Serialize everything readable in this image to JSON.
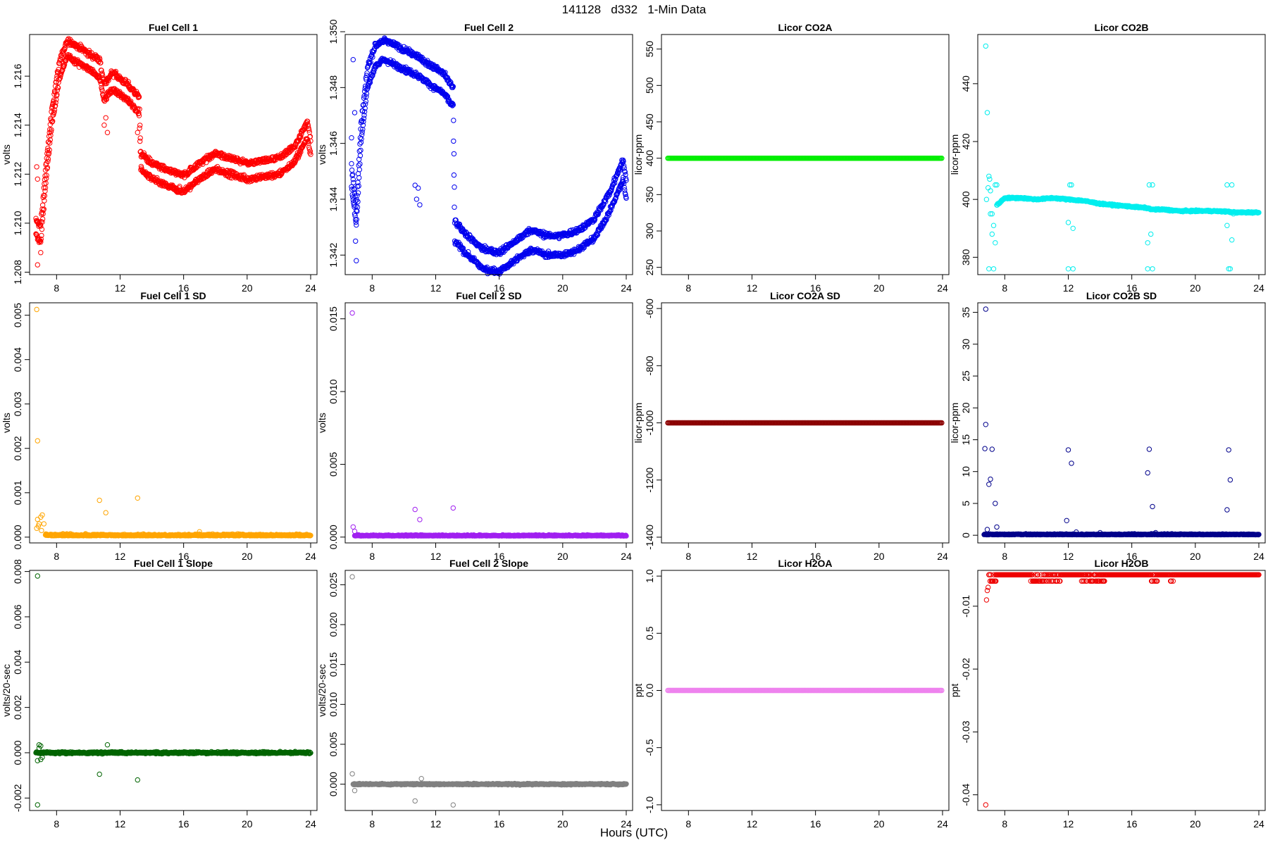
{
  "figure": {
    "title": "141128   d332   1-Min Data",
    "xlabel": "Hours (UTC)"
  },
  "chart_data": [
    {
      "type": "scatter",
      "title": "Fuel Cell 1",
      "ylabel": "volts",
      "color": "#ff0000",
      "xlim": [
        6.3,
        24.4
      ],
      "ylim": [
        1.2079,
        1.2177
      ],
      "xticks": [
        8,
        12,
        16,
        20,
        24
      ],
      "yticks": [
        1.208,
        1.21,
        1.212,
        1.214,
        1.216
      ],
      "ydecimals": 3,
      "shape": {
        "kind": "profile",
        "noise": 0.00012,
        "offsets": [
          0,
          0.00065
        ],
        "knots": [
          [
            6.7,
            1.2095
          ],
          [
            7.0,
            1.2092
          ],
          [
            7.3,
            1.2115
          ],
          [
            7.7,
            1.214
          ],
          [
            8.2,
            1.216
          ],
          [
            8.7,
            1.2168
          ],
          [
            9.5,
            1.2165
          ],
          [
            10.7,
            1.216
          ],
          [
            11.0,
            1.215
          ],
          [
            11.5,
            1.2155
          ],
          [
            12.5,
            1.215
          ],
          [
            13.2,
            1.2145
          ],
          [
            13.3,
            1.2122
          ],
          [
            14.0,
            1.2118
          ],
          [
            15.0,
            1.2115
          ],
          [
            16.0,
            1.2113
          ],
          [
            17.0,
            1.2118
          ],
          [
            18.0,
            1.2122
          ],
          [
            19.0,
            1.212
          ],
          [
            20.0,
            1.2118
          ],
          [
            21.0,
            1.2119
          ],
          [
            22.0,
            1.212
          ],
          [
            23.0,
            1.2125
          ],
          [
            23.8,
            1.2135
          ],
          [
            24.0,
            1.2128
          ]
        ],
        "extra": [
          [
            6.8,
            1.2083
          ],
          [
            7.0,
            1.2088
          ],
          [
            11.0,
            1.214
          ],
          [
            11.2,
            1.2137
          ],
          [
            11.1,
            1.2143
          ],
          [
            13.1,
            1.2137
          ],
          [
            6.75,
            1.2123
          ],
          [
            6.8,
            1.2118
          ]
        ]
      }
    },
    {
      "type": "scatter",
      "title": "Fuel Cell 2",
      "ylabel": "volts",
      "color": "#0000ee",
      "xlim": [
        6.3,
        24.4
      ],
      "ylim": [
        1.3413,
        1.3499
      ],
      "xticks": [
        8,
        12,
        16,
        20,
        24
      ],
      "yticks": [
        1.342,
        1.344,
        1.346,
        1.348,
        1.35
      ],
      "ydecimals": 3,
      "shape": {
        "kind": "profile",
        "noise": 0.0001,
        "offsets": [
          0,
          0.0007
        ],
        "knots": [
          [
            6.7,
            1.3445
          ],
          [
            7.0,
            1.343
          ],
          [
            7.3,
            1.346
          ],
          [
            7.7,
            1.348
          ],
          [
            8.2,
            1.3488
          ],
          [
            8.8,
            1.349
          ],
          [
            9.5,
            1.3488
          ],
          [
            10.6,
            1.3485
          ],
          [
            10.7,
            1.3485
          ],
          [
            11.4,
            1.3482
          ],
          [
            12.5,
            1.3478
          ],
          [
            13.1,
            1.3473
          ],
          [
            13.2,
            1.3425
          ],
          [
            14.0,
            1.342
          ],
          [
            15.0,
            1.3415
          ],
          [
            16.0,
            1.3414
          ],
          [
            17.0,
            1.3418
          ],
          [
            18.0,
            1.3422
          ],
          [
            19.0,
            1.342
          ],
          [
            20.0,
            1.342
          ],
          [
            21.0,
            1.3422
          ],
          [
            22.0,
            1.3426
          ],
          [
            23.0,
            1.3436
          ],
          [
            23.8,
            1.3447
          ],
          [
            24.0,
            1.344
          ]
        ],
        "extra": [
          [
            6.8,
            1.349
          ],
          [
            6.9,
            1.3471
          ],
          [
            7.0,
            1.3418
          ],
          [
            6.95,
            1.3425
          ],
          [
            10.7,
            1.3445
          ],
          [
            10.9,
            1.3444
          ],
          [
            11.0,
            1.3438
          ],
          [
            10.8,
            1.344
          ],
          [
            6.7,
            1.3462
          ]
        ]
      }
    },
    {
      "type": "scatter",
      "title": "Licor CO2A",
      "ylabel": "licor-ppm",
      "color": "#00ee00",
      "xlim": [
        6.3,
        24.4
      ],
      "ylim": [
        240,
        570
      ],
      "xticks": [
        8,
        12,
        16,
        20,
        24
      ],
      "yticks": [
        250,
        300,
        350,
        400,
        450,
        500,
        550
      ],
      "ydecimals": 0,
      "shape": {
        "kind": "flat",
        "value": 400
      }
    },
    {
      "type": "scatter",
      "title": "Licor CO2B",
      "ylabel": "licor-ppm",
      "color": "#00eeee",
      "xlim": [
        6.3,
        24.4
      ],
      "ylim": [
        374,
        457
      ],
      "xticks": [
        8,
        12,
        16,
        20,
        24
      ],
      "yticks": [
        380,
        400,
        420,
        440
      ],
      "ydecimals": 0,
      "shape": {
        "kind": "profile",
        "noise": 0.25,
        "offsets": [
          0
        ],
        "knots": [
          [
            7.5,
            398
          ],
          [
            8.0,
            400.5
          ],
          [
            9.0,
            400.5
          ],
          [
            10.0,
            400
          ],
          [
            11.0,
            400.5
          ],
          [
            12.0,
            400
          ],
          [
            13.0,
            399.5
          ],
          [
            14.0,
            398.5
          ],
          [
            15.0,
            398
          ],
          [
            16.0,
            397.5
          ],
          [
            17.0,
            397
          ],
          [
            17.3,
            396.5
          ],
          [
            18.0,
            396.5
          ],
          [
            19.0,
            396
          ],
          [
            20.0,
            396
          ],
          [
            21.0,
            396
          ],
          [
            22.0,
            395.8
          ],
          [
            22.5,
            395.5
          ],
          [
            23.0,
            395.5
          ],
          [
            24.0,
            395.5
          ]
        ],
        "extra": [
          [
            6.8,
            453
          ],
          [
            6.9,
            430
          ],
          [
            7.0,
            408
          ],
          [
            7.05,
            407
          ],
          [
            6.95,
            404
          ],
          [
            7.1,
            403
          ],
          [
            6.85,
            400
          ],
          [
            7.1,
            395
          ],
          [
            7.2,
            395
          ],
          [
            7.3,
            391
          ],
          [
            7.2,
            388
          ],
          [
            7.4,
            385
          ],
          [
            7.5,
            405
          ],
          [
            7.4,
            405
          ],
          [
            7.0,
            376
          ],
          [
            7.3,
            376
          ],
          [
            12.1,
            405
          ],
          [
            12.2,
            405
          ],
          [
            12.0,
            392
          ],
          [
            12.3,
            390
          ],
          [
            12.0,
            376
          ],
          [
            12.3,
            376
          ],
          [
            17.1,
            405
          ],
          [
            17.3,
            405
          ],
          [
            17.0,
            385
          ],
          [
            17.2,
            388
          ],
          [
            17.0,
            376
          ],
          [
            17.3,
            376
          ],
          [
            22.0,
            405
          ],
          [
            22.3,
            405
          ],
          [
            22.0,
            391
          ],
          [
            22.3,
            386
          ],
          [
            22.1,
            376
          ],
          [
            22.2,
            376
          ],
          [
            22.4,
            395
          ]
        ]
      }
    },
    {
      "type": "scatter",
      "title": "Fuel Cell 1 SD",
      "ylabel": "volts",
      "color": "#ffa500",
      "xlim": [
        6.3,
        24.4
      ],
      "ylim": [
        -0.00013,
        0.00528
      ],
      "xticks": [
        8,
        12,
        16,
        20,
        24
      ],
      "yticks": [
        0.0,
        0.001,
        0.002,
        0.003,
        0.004,
        0.005
      ],
      "ydecimals": 3,
      "shape": {
        "kind": "lowband",
        "base": 3e-05,
        "noise": 3.5e-05,
        "from": 7.3,
        "extra": [
          [
            6.75,
            0.00513
          ],
          [
            6.8,
            0.00217
          ],
          [
            10.7,
            0.00083
          ],
          [
            11.1,
            0.00055
          ],
          [
            13.1,
            0.00088
          ],
          [
            6.8,
            0.0004
          ],
          [
            6.9,
            0.0003
          ],
          [
            7.0,
            0.00045
          ],
          [
            7.1,
            0.0005
          ],
          [
            7.2,
            0.0003
          ],
          [
            6.75,
            0.0002
          ],
          [
            6.85,
            0.00025
          ],
          [
            7.05,
            0.00015
          ],
          [
            17.0,
            0.00012
          ]
        ]
      }
    },
    {
      "type": "scatter",
      "title": "Fuel Cell 2 SD",
      "ylabel": "volts",
      "color": "#a020f0",
      "xlim": [
        6.3,
        24.4
      ],
      "ylim": [
        -0.0004,
        0.0161
      ],
      "xticks": [
        8,
        12,
        16,
        20,
        24
      ],
      "yticks": [
        0.0,
        0.005,
        0.01,
        0.015
      ],
      "ydecimals": 3,
      "shape": {
        "kind": "lowband",
        "base": 8e-05,
        "noise": 6e-05,
        "from": 6.9,
        "extra": [
          [
            6.75,
            0.0154
          ],
          [
            6.8,
            0.0007
          ],
          [
            6.9,
            0.0004
          ],
          [
            10.7,
            0.0019
          ],
          [
            11.0,
            0.0012
          ],
          [
            13.1,
            0.002
          ]
        ]
      }
    },
    {
      "type": "scatter",
      "title": "Licor CO2A SD",
      "ylabel": "licor-ppm",
      "color": "#8b0000",
      "xlim": [
        6.3,
        24.4
      ],
      "ylim": [
        -1420,
        -580
      ],
      "xticks": [
        8,
        12,
        16,
        20,
        24
      ],
      "yticks": [
        -1400,
        -1200,
        -1000,
        -800,
        -600
      ],
      "ydecimals": 0,
      "shape": {
        "kind": "flat",
        "value": -1000
      }
    },
    {
      "type": "scatter",
      "title": "Licor CO2B SD",
      "ylabel": "licor-ppm",
      "color": "#00008b",
      "xlim": [
        6.3,
        24.4
      ],
      "ylim": [
        -1.2,
        36.5
      ],
      "xticks": [
        8,
        12,
        16,
        20,
        24
      ],
      "yticks": [
        0,
        5,
        10,
        15,
        20,
        25,
        30,
        35
      ],
      "ydecimals": 0,
      "shape": {
        "kind": "lowband",
        "base": 0.08,
        "noise": 0.12,
        "from": 6.7,
        "extra": [
          [
            6.8,
            35.5
          ],
          [
            6.8,
            17.4
          ],
          [
            6.75,
            13.6
          ],
          [
            7.2,
            13.5
          ],
          [
            7.0,
            8.0
          ],
          [
            7.1,
            8.8
          ],
          [
            7.4,
            5.0
          ],
          [
            7.5,
            1.3
          ],
          [
            6.9,
            0.9
          ],
          [
            12.0,
            13.4
          ],
          [
            12.2,
            11.3
          ],
          [
            11.9,
            2.3
          ],
          [
            17.1,
            13.5
          ],
          [
            17.0,
            9.8
          ],
          [
            17.3,
            4.5
          ],
          [
            22.1,
            13.4
          ],
          [
            22.2,
            8.7
          ],
          [
            22.0,
            4.0
          ],
          [
            12.5,
            0.5
          ],
          [
            14.0,
            0.4
          ],
          [
            17.5,
            0.4
          ]
        ]
      }
    },
    {
      "type": "scatter",
      "title": "Fuel Cell 1 Slope",
      "ylabel": "volts/20-sec",
      "color": "#006400",
      "xlim": [
        6.3,
        24.4
      ],
      "ylim": [
        -0.00255,
        0.00805
      ],
      "xticks": [
        8,
        12,
        16,
        20,
        24
      ],
      "yticks": [
        -0.002,
        0.0,
        0.002,
        0.004,
        0.006,
        0.008
      ],
      "ydecimals": 3,
      "shape": {
        "kind": "lowband",
        "base": 0.0,
        "noise": 4e-05,
        "from": 6.7,
        "extra": [
          [
            6.8,
            0.0078
          ],
          [
            6.8,
            -0.0023
          ],
          [
            10.7,
            -0.00095
          ],
          [
            13.1,
            -0.0012
          ],
          [
            11.2,
            0.00035
          ],
          [
            6.9,
            0.00035
          ],
          [
            7.0,
            0.0003
          ],
          [
            6.8,
            -0.00035
          ],
          [
            7.0,
            -0.0003
          ],
          [
            6.9,
            0.0002
          ],
          [
            7.1,
            -0.0002
          ]
        ]
      }
    },
    {
      "type": "scatter",
      "title": "Fuel Cell 2 Slope",
      "ylabel": "volts/20-sec",
      "color": "#808080",
      "xlim": [
        6.3,
        24.4
      ],
      "ylim": [
        -0.0033,
        0.0268
      ],
      "xticks": [
        8,
        12,
        16,
        20,
        24
      ],
      "yticks": [
        0.0,
        0.005,
        0.01,
        0.015,
        0.02,
        0.025
      ],
      "ydecimals": 3,
      "shape": {
        "kind": "lowband",
        "base": 0.0,
        "noise": 8e-05,
        "from": 6.8,
        "extra": [
          [
            6.75,
            0.026
          ],
          [
            6.75,
            0.0013
          ],
          [
            6.9,
            -0.0008
          ],
          [
            10.7,
            -0.0021
          ],
          [
            11.1,
            0.0007
          ],
          [
            13.1,
            -0.0026
          ]
        ]
      }
    },
    {
      "type": "scatter",
      "title": "Licor H2OA",
      "ylabel": "ppt",
      "color": "#ee82ee",
      "xlim": [
        6.3,
        24.4
      ],
      "ylim": [
        -1.05,
        1.05
      ],
      "xticks": [
        8,
        12,
        16,
        20,
        24
      ],
      "yticks": [
        -1.0,
        -0.5,
        0.0,
        0.5,
        1.0
      ],
      "ydecimals": 1,
      "shape": {
        "kind": "flat",
        "value": 0.0
      }
    },
    {
      "type": "scatter",
      "title": "Licor H2OB",
      "ylabel": "ppt",
      "color": "#ee0000",
      "xlim": [
        6.3,
        24.4
      ],
      "ylim": [
        -0.0425,
        -0.0043
      ],
      "xticks": [
        8,
        12,
        16,
        20,
        24
      ],
      "yticks": [
        -0.04,
        -0.03,
        -0.02,
        -0.01
      ],
      "ydecimals": 2,
      "shape": {
        "kind": "twolevel",
        "value": -0.005,
        "alt": -0.006,
        "altRanges": [
          [
            7.0,
            7.5
          ],
          [
            9.5,
            11.5
          ],
          [
            12.8,
            14.3
          ],
          [
            17.2,
            17.6
          ],
          [
            18.4,
            18.6
          ]
        ],
        "extra": [
          [
            6.8,
            -0.0416
          ],
          [
            6.85,
            -0.009
          ],
          [
            6.9,
            -0.0075
          ],
          [
            6.95,
            -0.007
          ]
        ]
      }
    }
  ]
}
